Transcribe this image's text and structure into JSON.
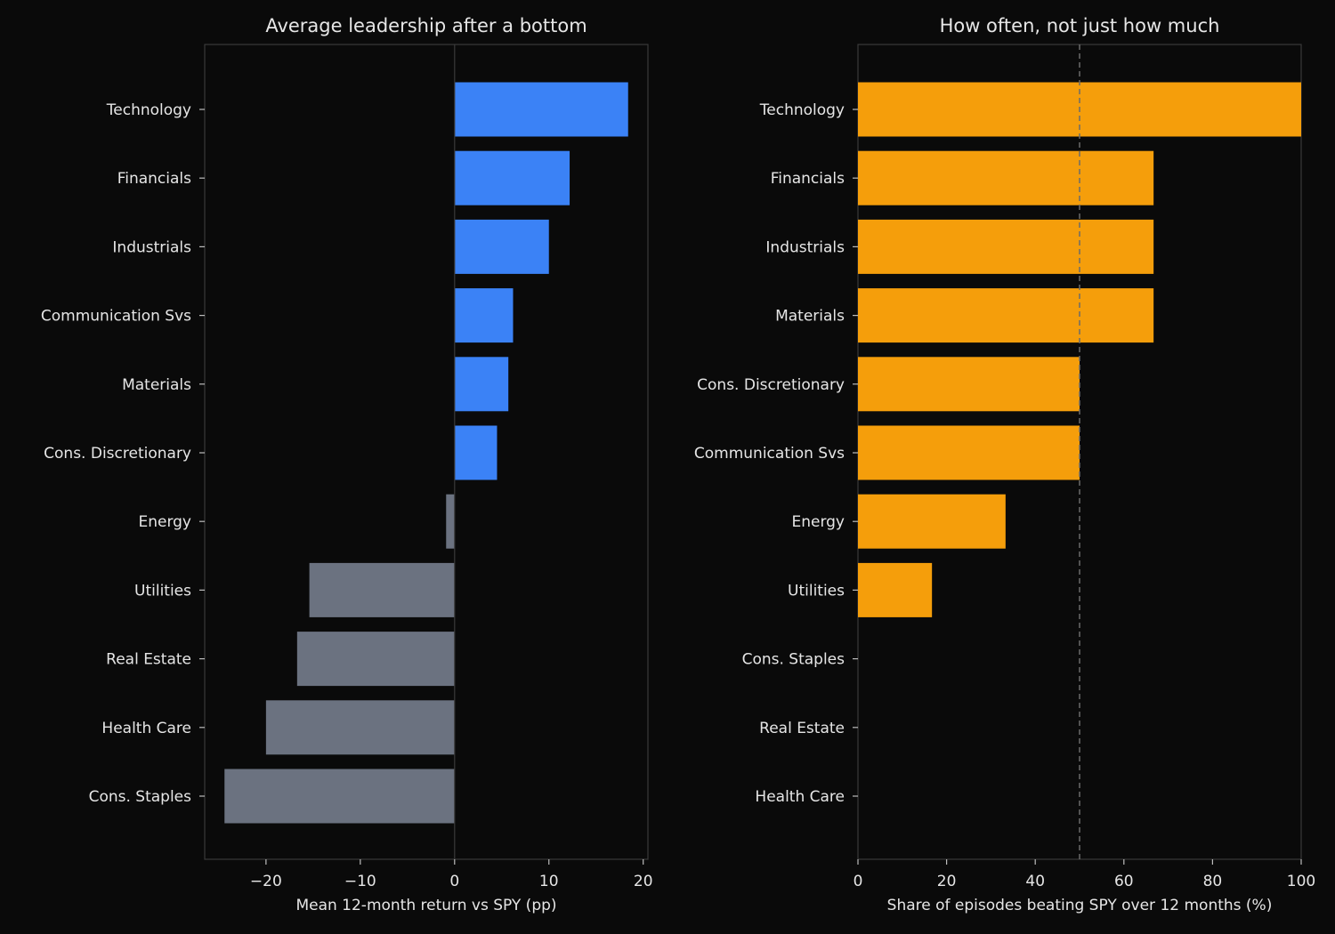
{
  "chart_data": [
    {
      "type": "bar",
      "orientation": "horizontal",
      "title": "Average leadership after a bottom",
      "xlabel": "Mean 12-month return vs SPY (pp)",
      "ylabel": "",
      "xlim": [
        -26.5,
        20.5
      ],
      "xticks": [
        -20,
        -10,
        0,
        10,
        20
      ],
      "xtick_labels": [
        "−20",
        "−10",
        "0",
        "10",
        "20"
      ],
      "zero_line": 0,
      "grid": false,
      "categories": [
        "Technology",
        "Financials",
        "Industrials",
        "Communication Svs",
        "Materials",
        "Cons. Discretionary",
        "Energy",
        "Utilities",
        "Real Estate",
        "Health Care",
        "Cons. Staples"
      ],
      "values": [
        18.4,
        12.2,
        10.0,
        6.2,
        5.7,
        4.5,
        -0.9,
        -15.4,
        -16.7,
        -20.0,
        -24.4
      ],
      "colors": {
        "positive": "#3b82f6",
        "negative": "#6b7280"
      }
    },
    {
      "type": "bar",
      "orientation": "horizontal",
      "title": "How often, not just how much",
      "xlabel": "Share of episodes beating SPY over 12 months (%)",
      "ylabel": "",
      "xlim": [
        0,
        100
      ],
      "xticks": [
        0,
        20,
        40,
        60,
        80,
        100
      ],
      "xtick_labels": [
        "0",
        "20",
        "40",
        "60",
        "80",
        "100"
      ],
      "reference_line": 50,
      "grid": false,
      "categories": [
        "Technology",
        "Financials",
        "Industrials",
        "Materials",
        "Cons. Discretionary",
        "Communication Svs",
        "Energy",
        "Utilities",
        "Cons. Staples",
        "Real Estate",
        "Health Care"
      ],
      "values": [
        100,
        66.7,
        66.7,
        66.7,
        50,
        50,
        33.3,
        16.7,
        0,
        0,
        0
      ],
      "colors": {
        "bar": "#f59e0b"
      }
    }
  ],
  "style": {
    "background": "#0a0a0a",
    "axes_edge": "#3a3a3a",
    "text": "#e6e6e6",
    "ref_line": "#6b6b6b"
  }
}
